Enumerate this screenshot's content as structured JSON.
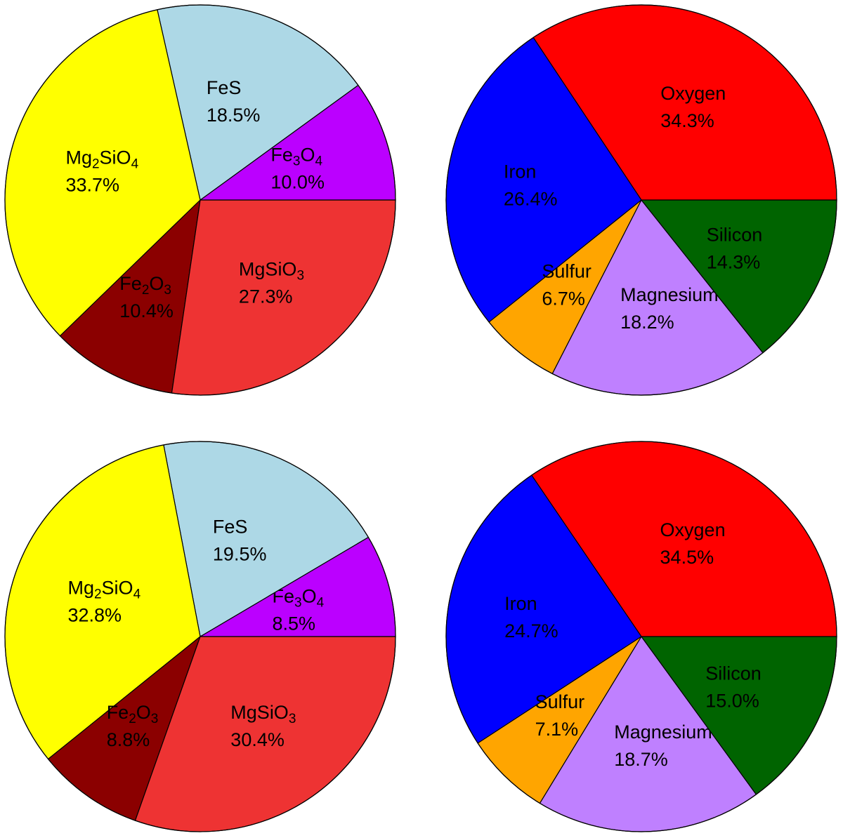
{
  "chart_data": [
    {
      "type": "pie",
      "start_angle_deg": 0,
      "direction": "counterclockwise",
      "slices": [
        {
          "name": "Fe3O4",
          "label_main": "Fe",
          "sub1": "3",
          "mid": "O",
          "sub2": "4",
          "percent": "10.0%",
          "value": 10.0,
          "color": "#bb00ff"
        },
        {
          "name": "FeS",
          "label_main": "FeS",
          "sub1": "",
          "mid": "",
          "sub2": "",
          "percent": "18.5%",
          "value": 18.5,
          "color": "#add8e6"
        },
        {
          "name": "Mg2SiO4",
          "label_main": "Mg",
          "sub1": "2",
          "mid": "SiO",
          "sub2": "4",
          "percent": "33.7%",
          "value": 33.7,
          "color": "#ffff00"
        },
        {
          "name": "Fe2O3",
          "label_main": "Fe",
          "sub1": "2",
          "mid": "O",
          "sub2": "3",
          "percent": "10.4%",
          "value": 10.4,
          "color": "#8b0000"
        },
        {
          "name": "MgSiO3",
          "label_main": "MgSiO",
          "sub1": "3",
          "mid": "",
          "sub2": "",
          "percent": "27.3%",
          "value": 27.3,
          "color": "#ee3333"
        }
      ]
    },
    {
      "type": "pie",
      "start_angle_deg": 0,
      "direction": "counterclockwise",
      "slices": [
        {
          "name": "Oxygen",
          "label_main": "Oxygen",
          "sub1": "",
          "mid": "",
          "sub2": "",
          "percent": "34.3%",
          "value": 34.3,
          "color": "#ff0000"
        },
        {
          "name": "Iron",
          "label_main": "Iron",
          "sub1": "",
          "mid": "",
          "sub2": "",
          "percent": "26.4%",
          "value": 26.4,
          "color": "#0000ff"
        },
        {
          "name": "Sulfur",
          "label_main": "Sulfur",
          "sub1": "",
          "mid": "",
          "sub2": "",
          "percent": "6.7%",
          "value": 6.7,
          "color": "#ffa500"
        },
        {
          "name": "Magnesium",
          "label_main": "Magnesium",
          "sub1": "",
          "mid": "",
          "sub2": "",
          "percent": "18.2%",
          "value": 18.2,
          "color": "#bf80ff"
        },
        {
          "name": "Silicon",
          "label_main": "Silicon",
          "sub1": "",
          "mid": "",
          "sub2": "",
          "percent": "14.3%",
          "value": 14.3,
          "color": "#006400"
        }
      ]
    },
    {
      "type": "pie",
      "start_angle_deg": 0,
      "direction": "counterclockwise",
      "slices": [
        {
          "name": "Fe3O4",
          "label_main": "Fe",
          "sub1": "3",
          "mid": "O",
          "sub2": "4",
          "percent": "8.5%",
          "value": 8.5,
          "color": "#bb00ff"
        },
        {
          "name": "FeS",
          "label_main": "FeS",
          "sub1": "",
          "mid": "",
          "sub2": "",
          "percent": "19.5%",
          "value": 19.5,
          "color": "#add8e6"
        },
        {
          "name": "Mg2SiO4",
          "label_main": "Mg",
          "sub1": "2",
          "mid": "SiO",
          "sub2": "4",
          "percent": "32.8%",
          "value": 32.8,
          "color": "#ffff00"
        },
        {
          "name": "Fe2O3",
          "label_main": "Fe",
          "sub1": "2",
          "mid": "O",
          "sub2": "3",
          "percent": "8.8%",
          "value": 8.8,
          "color": "#8b0000"
        },
        {
          "name": "MgSiO3",
          "label_main": "MgSiO",
          "sub1": "3",
          "mid": "",
          "sub2": "",
          "percent": "30.4%",
          "value": 30.4,
          "color": "#ee3333"
        }
      ]
    },
    {
      "type": "pie",
      "start_angle_deg": 0,
      "direction": "counterclockwise",
      "slices": [
        {
          "name": "Oxygen",
          "label_main": "Oxygen",
          "sub1": "",
          "mid": "",
          "sub2": "",
          "percent": "34.5%",
          "value": 34.5,
          "color": "#ff0000"
        },
        {
          "name": "Iron",
          "label_main": "Iron",
          "sub1": "",
          "mid": "",
          "sub2": "",
          "percent": "24.7%",
          "value": 24.7,
          "color": "#0000ff"
        },
        {
          "name": "Sulfur",
          "label_main": "Sulfur",
          "sub1": "",
          "mid": "",
          "sub2": "",
          "percent": "7.1%",
          "value": 7.1,
          "color": "#ffa500"
        },
        {
          "name": "Magnesium",
          "label_main": "Magnesium",
          "sub1": "",
          "mid": "",
          "sub2": "",
          "percent": "18.7%",
          "value": 18.7,
          "color": "#bf80ff"
        },
        {
          "name": "Silicon",
          "label_main": "Silicon",
          "sub1": "",
          "mid": "",
          "sub2": "",
          "percent": "15.0%",
          "value": 15.0,
          "color": "#006400"
        }
      ]
    }
  ]
}
